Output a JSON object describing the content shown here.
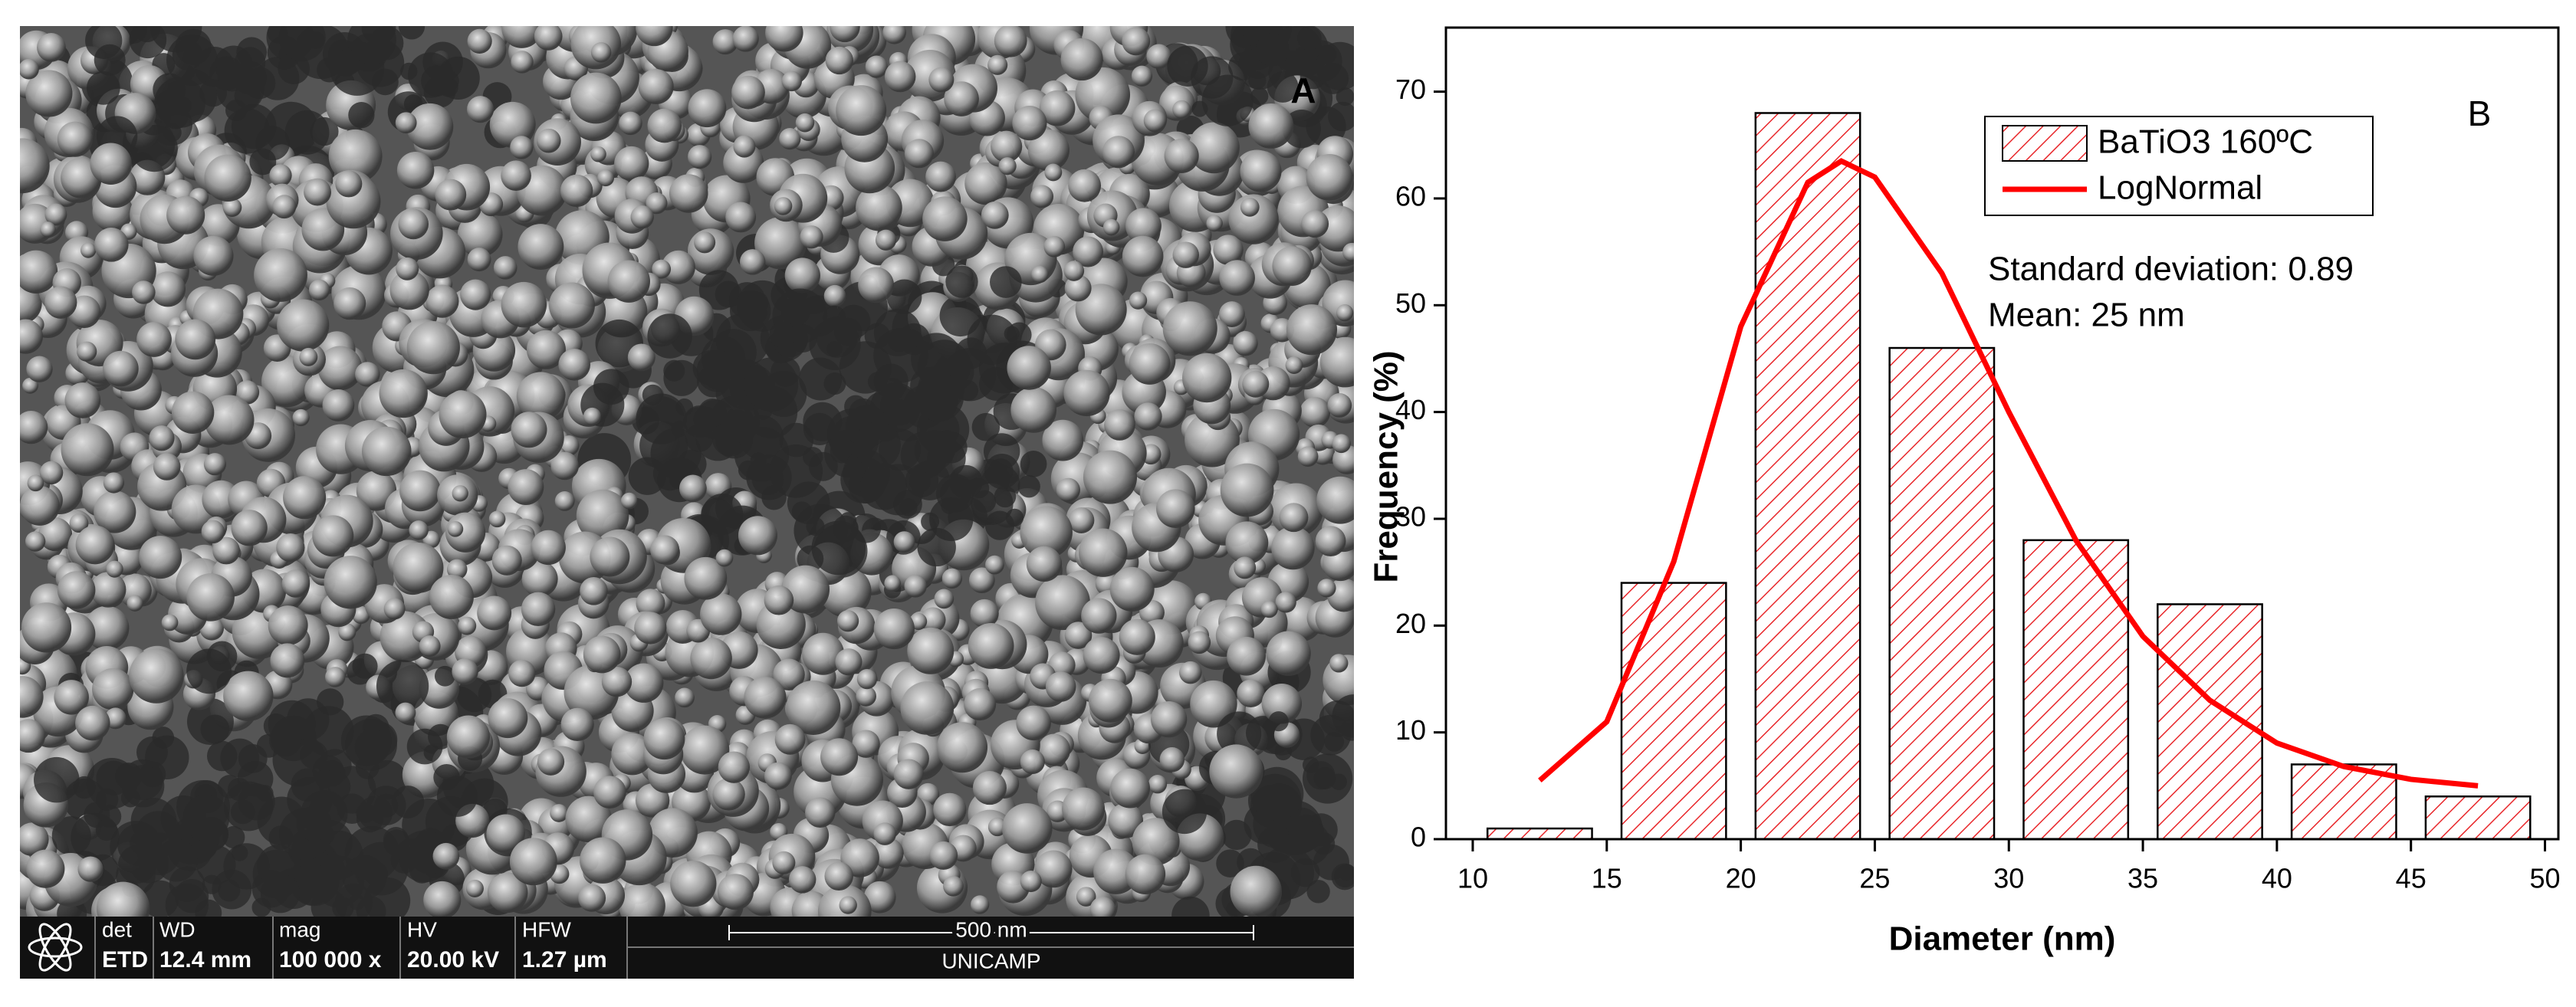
{
  "panel_a": {
    "label": "A",
    "info_bar": {
      "det_label": "det",
      "det": "ETD",
      "wd_label": "WD",
      "wd": "12.4 mm",
      "mag_label": "mag",
      "mag": "100 000 x",
      "hv_label": "HV",
      "hv": "20.00 kV",
      "hfw_label": "HFW",
      "hfw": "1.27 µm",
      "scale": "500 nm",
      "institution": "UNICAMP"
    }
  },
  "chart_data": {
    "type": "histogram",
    "panel_label": "B",
    "x_label": "Diameter (nm)",
    "y_label": "Frequency (%)",
    "bins": [
      10,
      15,
      20,
      25,
      30,
      35,
      40,
      45,
      50
    ],
    "series": [
      {
        "name": "BaTiO3 160ºC",
        "color": "#e8262a",
        "values": [
          1,
          24,
          68,
          46,
          28,
          22,
          7,
          4
        ]
      },
      {
        "name": "LogNormal",
        "color": "#ff0000",
        "x": [
          12.5,
          15,
          17.5,
          20,
          22.5,
          23.75,
          25,
          27.5,
          30,
          32.5,
          35,
          37.5,
          40,
          42.5,
          45,
          47.5
        ],
        "values": [
          5.5,
          11,
          26,
          48,
          61.5,
          63.5,
          62,
          53,
          40,
          28,
          19,
          13,
          9,
          6.8,
          5.6,
          5
        ]
      }
    ],
    "annotations": [
      "Standard deviation: 0.89",
      "Mean: 25 nm"
    ],
    "xlim": [
      9,
      50.5
    ],
    "ylim": [
      0,
      76
    ],
    "xticks": [
      10,
      15,
      20,
      25,
      30,
      35,
      40,
      45,
      50
    ],
    "yticks": [
      0,
      10,
      20,
      30,
      40,
      50,
      60,
      70
    ]
  }
}
